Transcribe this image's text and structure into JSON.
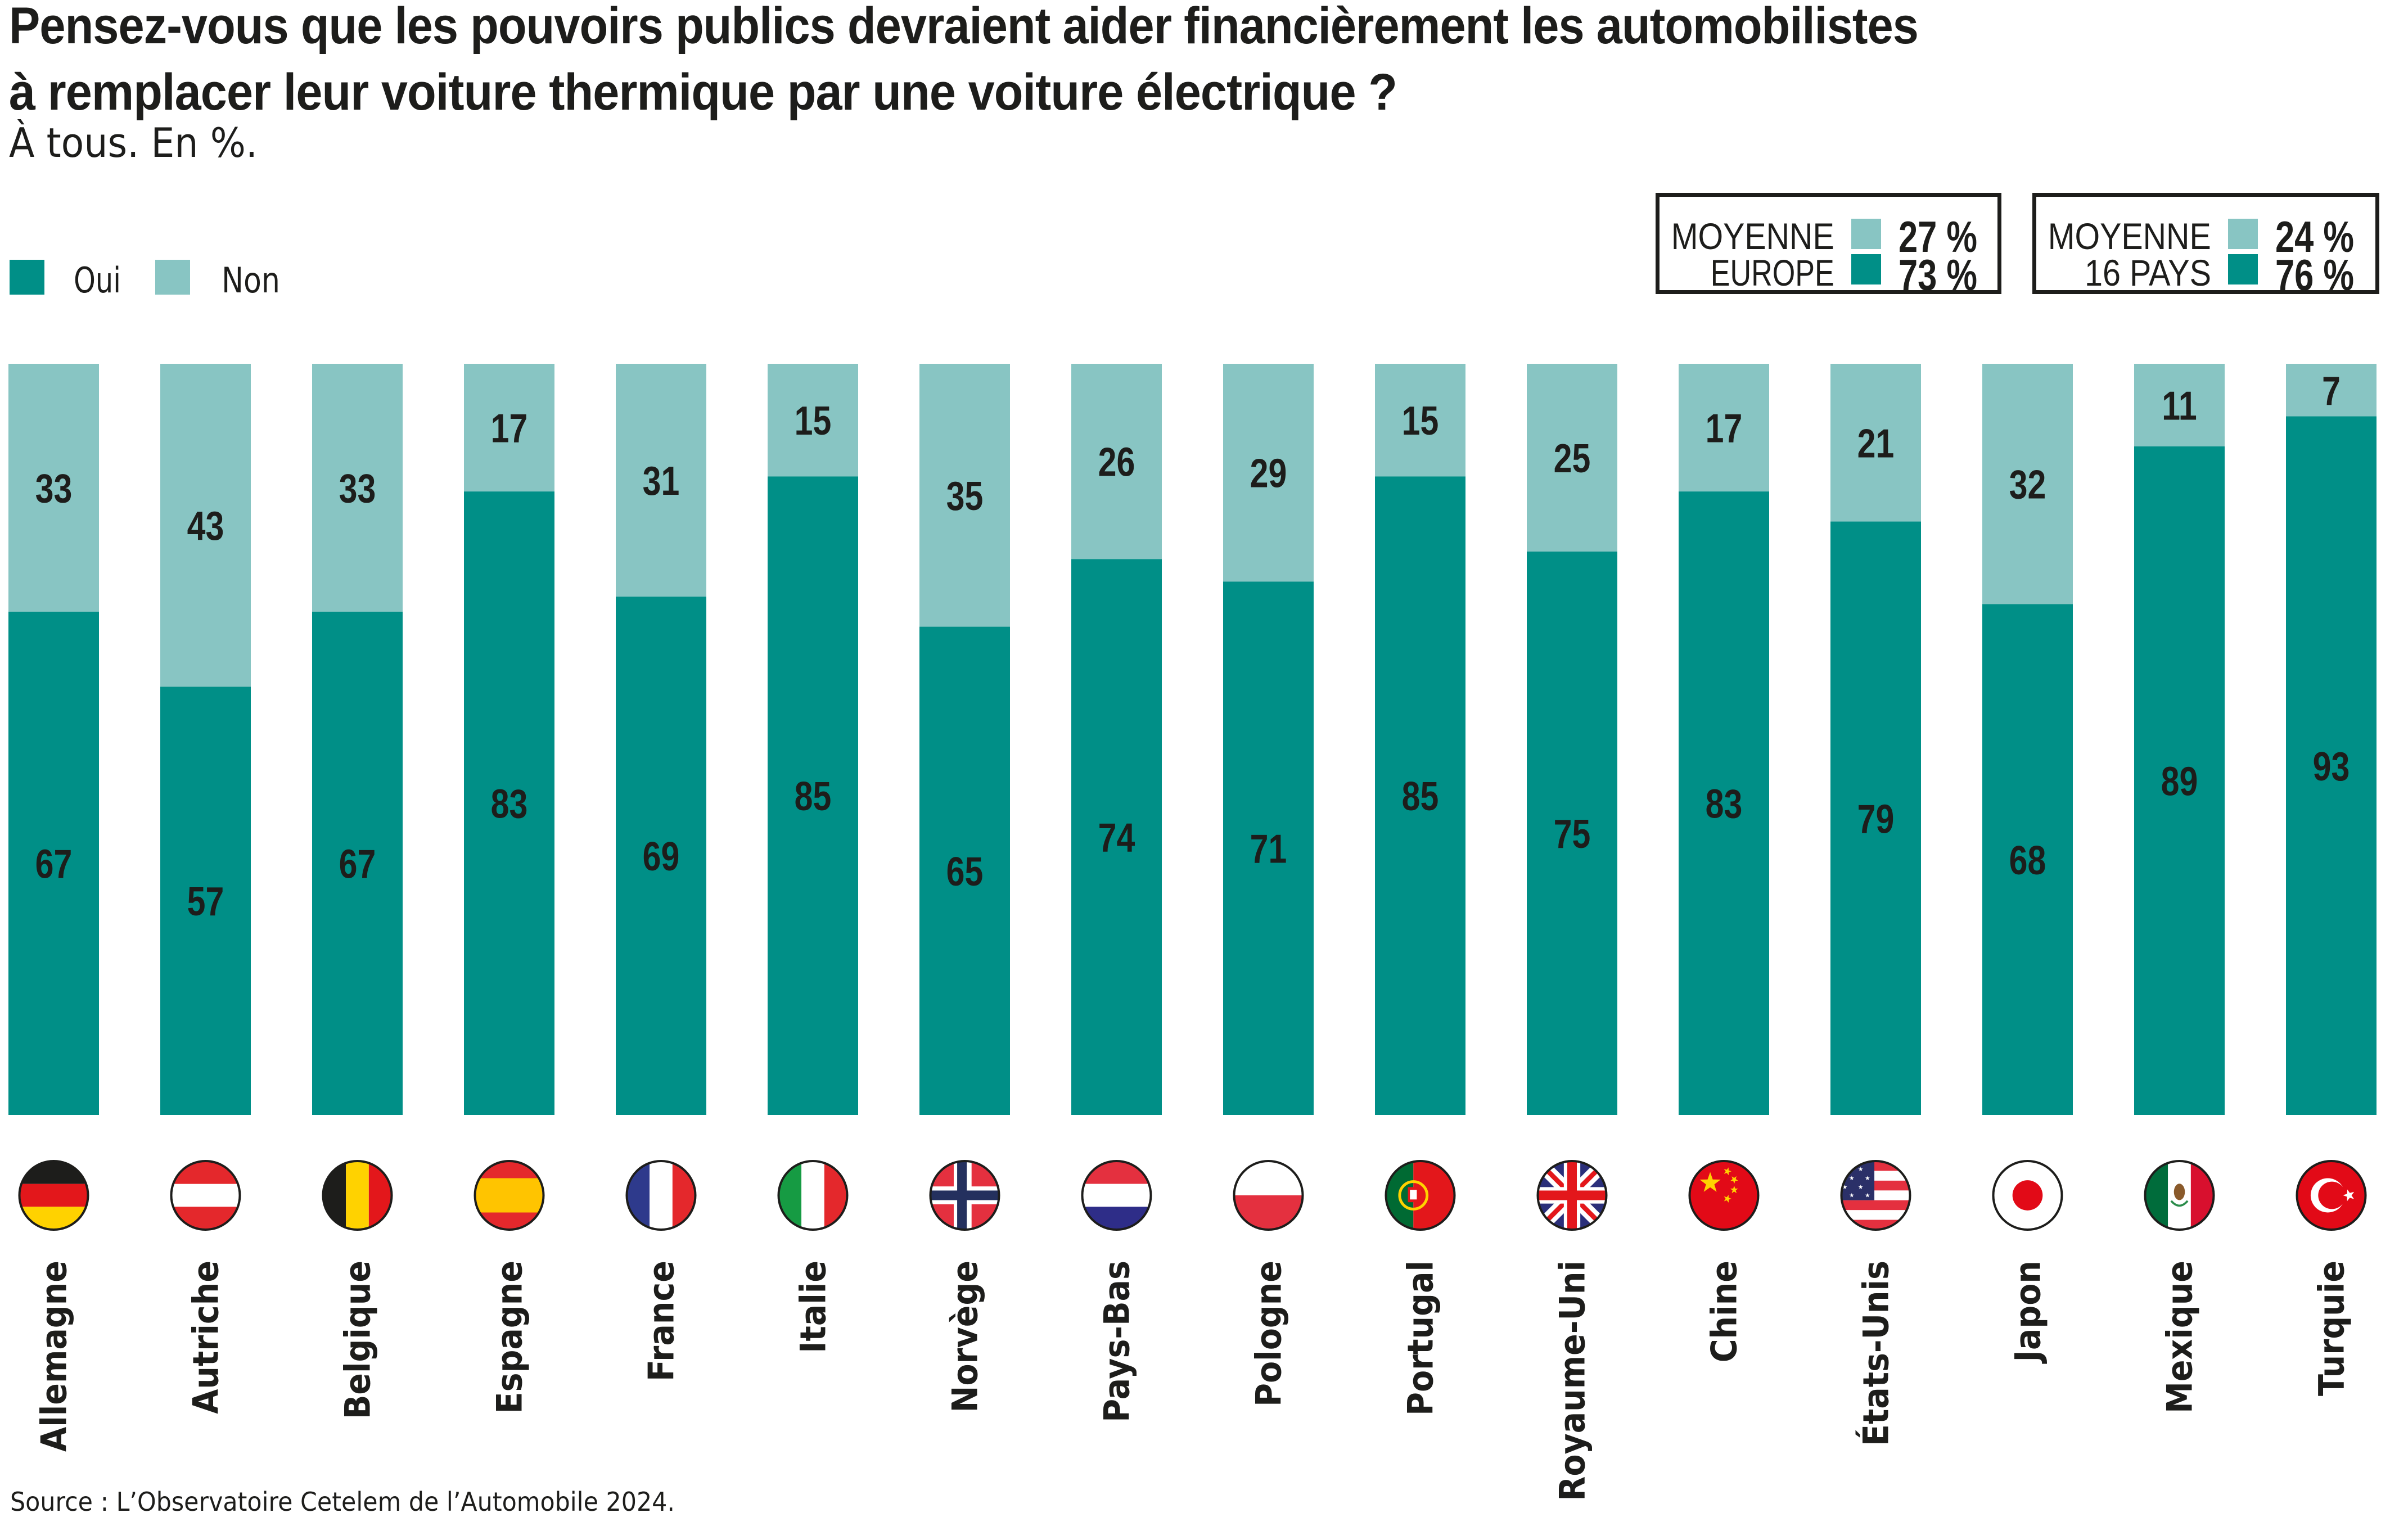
{
  "header": {
    "title_line1": "Pensez-vous que les pouvoirs publics devraient aider financièrement les automobilistes",
    "title_line2": "à remplacer leur voiture thermique par une voiture électrique ?",
    "subtitle": "À tous. En %."
  },
  "legend": {
    "oui": "Oui",
    "non": "Non"
  },
  "averages": [
    {
      "line1": "MOYENNE",
      "line2": "EUROPE",
      "non_pct": "27 %",
      "oui_pct": "73 %"
    },
    {
      "line1": "MOYENNE",
      "line2": "16 PAYS",
      "non_pct": "24 %",
      "oui_pct": "76 %"
    }
  ],
  "colors": {
    "oui": "#008f87",
    "non": "#88c5c3",
    "text": "#1d1d1b"
  },
  "source": "Source : L’Observatoire Cetelem de l’Automobile 2024.",
  "chart_data": {
    "type": "bar",
    "stacked": true,
    "title": "Pensez-vous que les pouvoirs publics devraient aider financièrement les automobilistes à remplacer leur voiture thermique par une voiture électrique ?",
    "subtitle": "À tous. En %.",
    "xlabel": "",
    "ylabel": "",
    "ylim": [
      0,
      100
    ],
    "grid": false,
    "legend_position": "top-left",
    "categories": [
      "Allemagne",
      "Autriche",
      "Belgique",
      "Espagne",
      "France",
      "Italie",
      "Norvège",
      "Pays-Bas",
      "Pologne",
      "Portugal",
      "Royaume-Uni",
      "Chine",
      "États-Unis",
      "Japon",
      "Mexique",
      "Turquie"
    ],
    "flags": [
      "de-flag-icon",
      "at-flag-icon",
      "be-flag-icon",
      "es-flag-icon",
      "fr-flag-icon",
      "it-flag-icon",
      "no-flag-icon",
      "nl-flag-icon",
      "pl-flag-icon",
      "pt-flag-icon",
      "gb-flag-icon",
      "cn-flag-icon",
      "us-flag-icon",
      "jp-flag-icon",
      "mx-flag-icon",
      "tr-flag-icon"
    ],
    "series": [
      {
        "name": "Oui",
        "color": "#008f87",
        "values": [
          67,
          57,
          67,
          83,
          69,
          85,
          65,
          74,
          71,
          85,
          75,
          83,
          79,
          68,
          89,
          93
        ]
      },
      {
        "name": "Non",
        "color": "#88c5c3",
        "values": [
          33,
          43,
          33,
          17,
          31,
          15,
          35,
          26,
          29,
          15,
          25,
          17,
          21,
          32,
          11,
          7
        ]
      }
    ]
  }
}
